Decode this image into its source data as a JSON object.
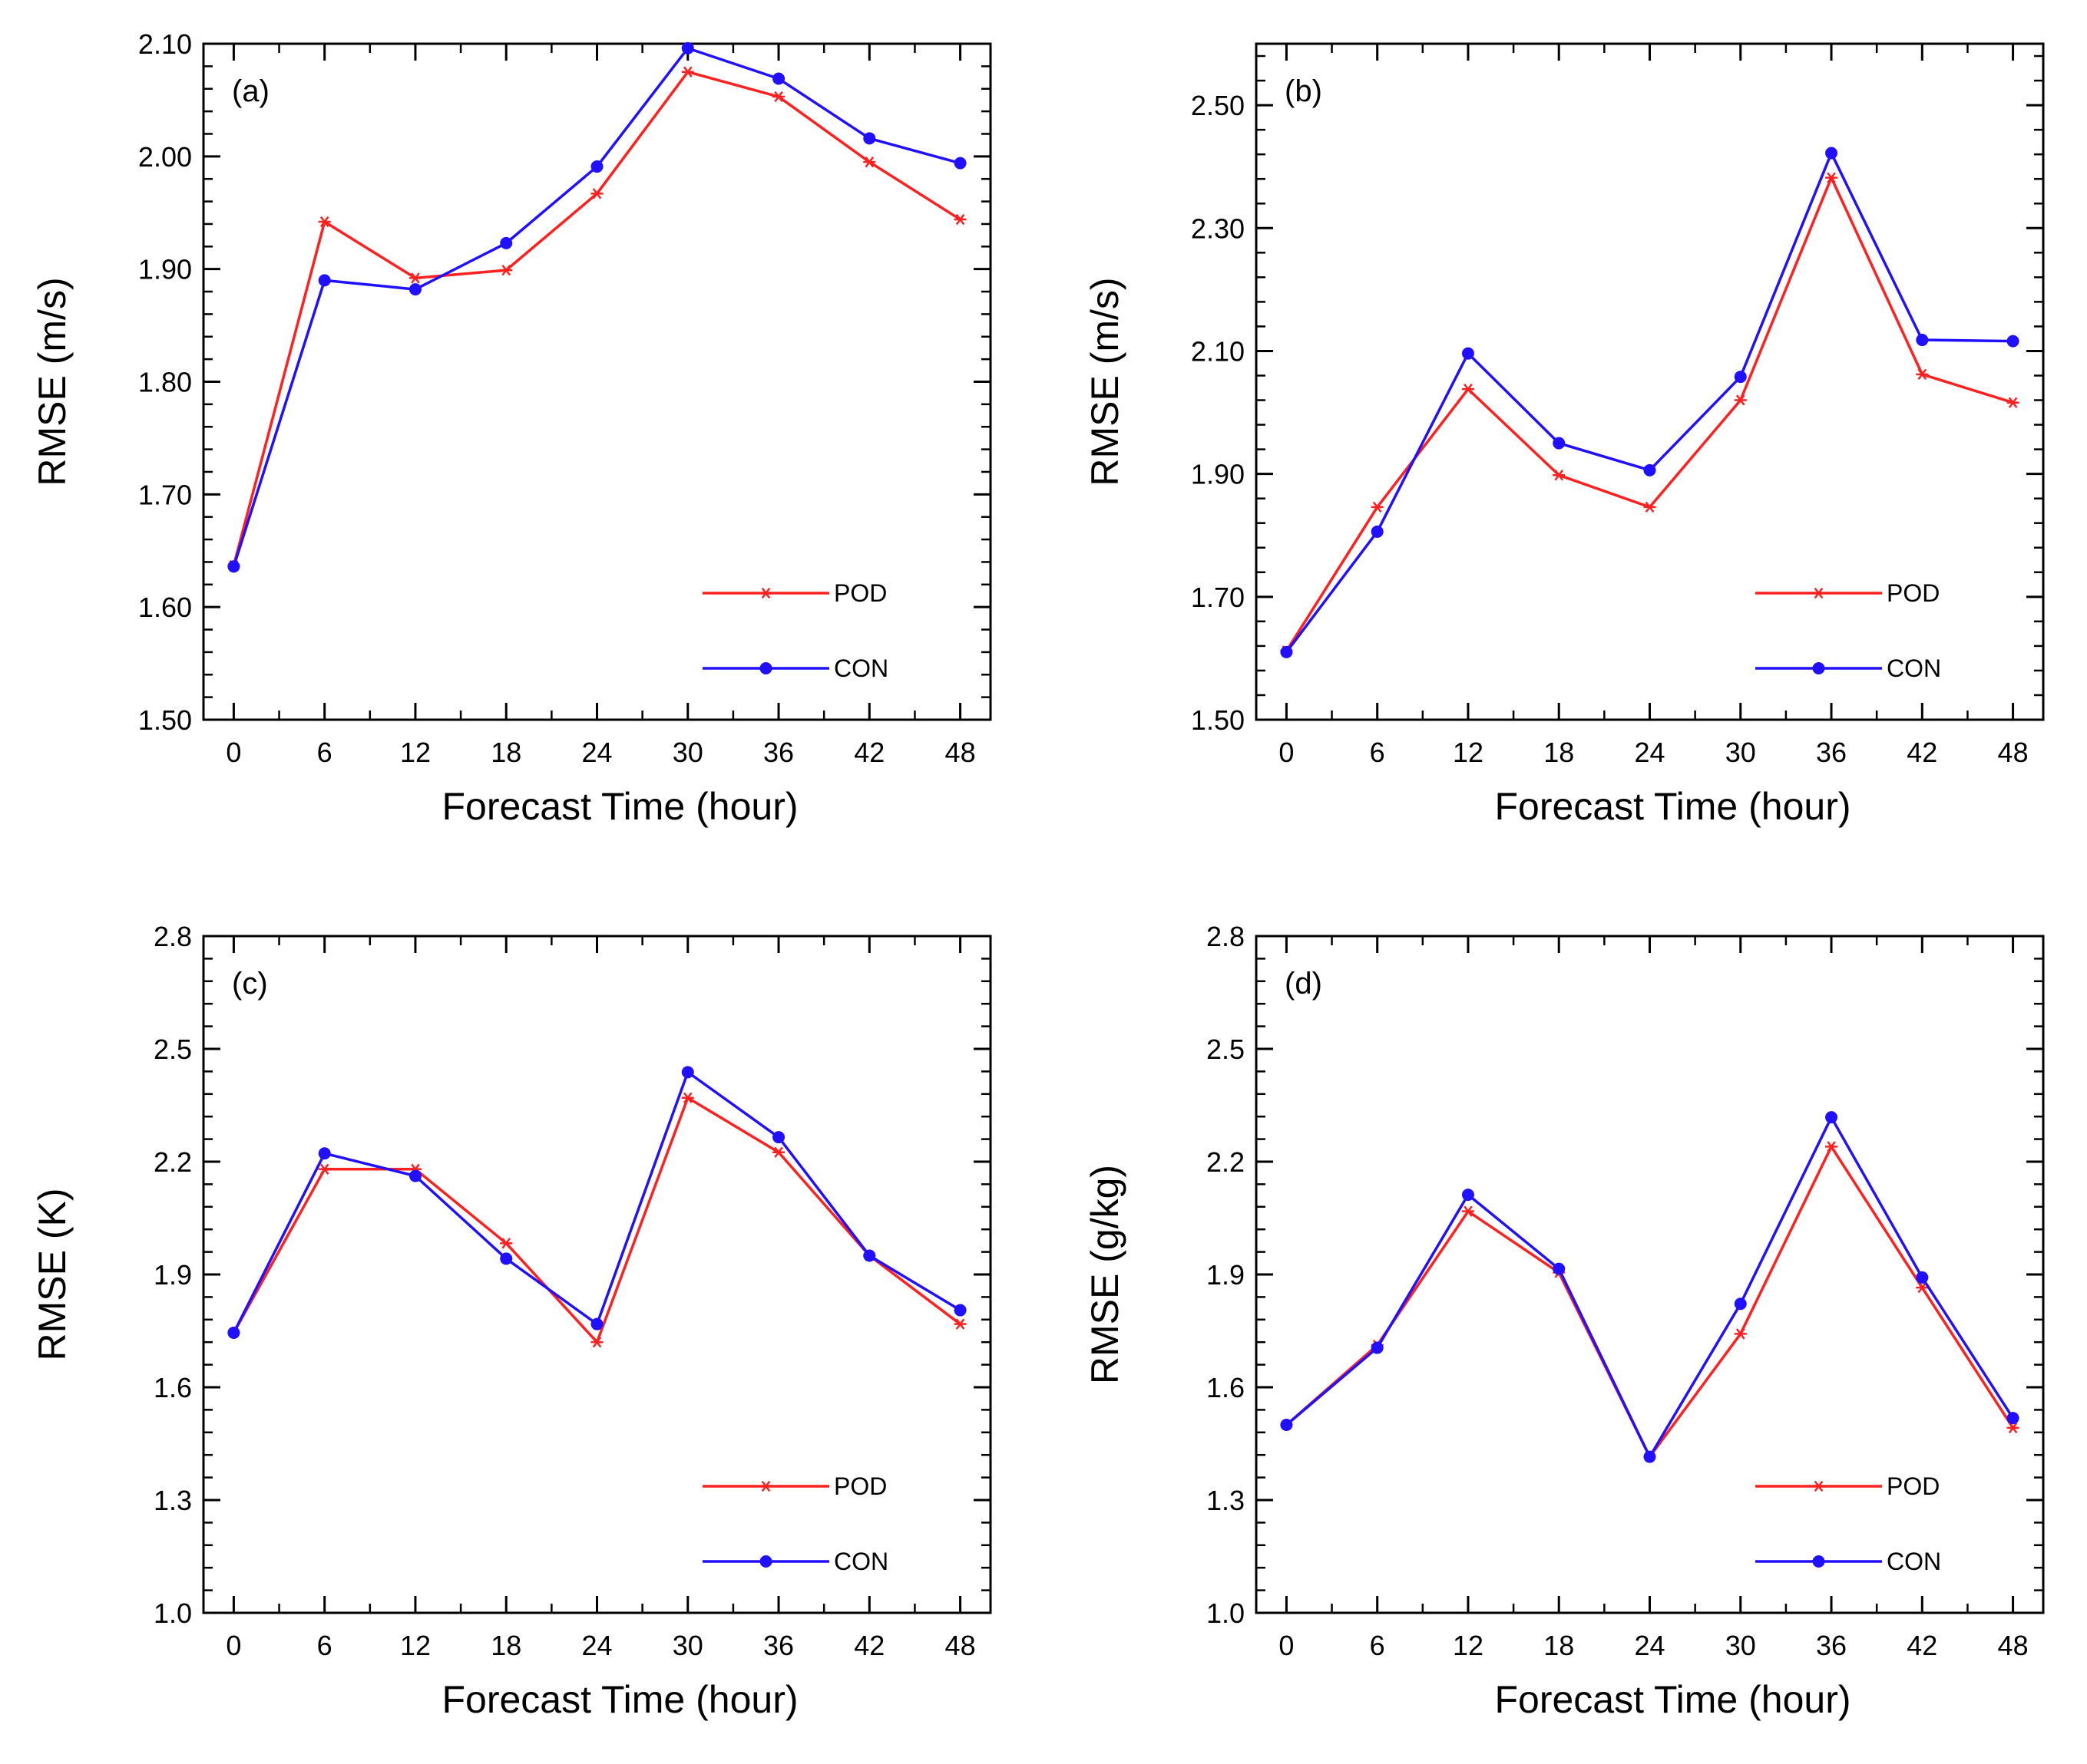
{
  "chart_data": [
    {
      "type": "line",
      "panel_label": "(a)",
      "xlabel": "Forecast Time (hour)",
      "ylabel": "RMSE (m/s)",
      "x": [
        0,
        6,
        12,
        18,
        24,
        30,
        36,
        42,
        48
      ],
      "x_tick_labels": [
        "0",
        "6",
        "12",
        "18",
        "24",
        "30",
        "36",
        "42",
        "48"
      ],
      "ylim": [
        1.5,
        2.1
      ],
      "y_ticks": [
        1.5,
        1.6,
        1.7,
        1.8,
        1.9,
        2.0,
        2.1
      ],
      "y_tick_labels": [
        "1.50",
        "1.60",
        "1.70",
        "1.80",
        "1.90",
        "2.00",
        "2.10"
      ],
      "legend_position": "bottom-right",
      "series": [
        {
          "name": "POD",
          "color": "#ff2020",
          "marker": "asterisk",
          "values": [
            1.637,
            1.942,
            1.892,
            1.899,
            1.967,
            2.075,
            2.053,
            1.995,
            1.944
          ]
        },
        {
          "name": "CON",
          "color": "#2010ff",
          "marker": "dot",
          "values": [
            1.636,
            1.89,
            1.882,
            1.923,
            1.991,
            2.096,
            2.069,
            2.016,
            1.994
          ]
        }
      ]
    },
    {
      "type": "line",
      "panel_label": "(b)",
      "xlabel": "Forecast Time (hour)",
      "ylabel": "RMSE (m/s)",
      "x": [
        0,
        6,
        12,
        18,
        24,
        30,
        36,
        42,
        48
      ],
      "x_tick_labels": [
        "0",
        "6",
        "12",
        "18",
        "24",
        "30",
        "36",
        "42",
        "48"
      ],
      "ylim": [
        1.5,
        2.6
      ],
      "y_ticks": [
        1.5,
        1.7,
        1.9,
        2.1,
        2.3,
        2.5
      ],
      "y_tick_labels": [
        "1.50",
        "1.70",
        "1.90",
        "2.10",
        "2.30",
        "2.50"
      ],
      "legend_position": "bottom-right",
      "series": [
        {
          "name": "POD",
          "color": "#ff2020",
          "marker": "asterisk",
          "values": [
            1.612,
            1.846,
            2.038,
            1.898,
            1.846,
            2.02,
            2.382,
            2.062,
            2.016
          ]
        },
        {
          "name": "CON",
          "color": "#2010ff",
          "marker": "dot",
          "values": [
            1.61,
            1.806,
            2.096,
            1.95,
            1.906,
            2.058,
            2.422,
            2.118,
            2.116
          ]
        }
      ]
    },
    {
      "type": "line",
      "panel_label": "(c)",
      "xlabel": "Forecast Time (hour)",
      "ylabel": "RMSE (K)",
      "x": [
        0,
        6,
        12,
        18,
        24,
        30,
        36,
        42,
        48
      ],
      "x_tick_labels": [
        "0",
        "6",
        "12",
        "18",
        "24",
        "30",
        "36",
        "42",
        "48"
      ],
      "ylim": [
        1.0,
        2.8
      ],
      "y_ticks": [
        1.0,
        1.3,
        1.6,
        1.9,
        2.2,
        2.5,
        2.8
      ],
      "y_tick_labels": [
        "1.0",
        "1.3",
        "1.6",
        "1.9",
        "2.2",
        "2.5",
        "2.8"
      ],
      "legend_position": "bottom-right",
      "series": [
        {
          "name": "POD",
          "color": "#ff2020",
          "marker": "asterisk",
          "values": [
            1.745,
            2.18,
            2.18,
            1.983,
            1.72,
            2.37,
            2.225,
            1.95,
            1.768
          ]
        },
        {
          "name": "CON",
          "color": "#2010ff",
          "marker": "dot",
          "values": [
            1.745,
            2.222,
            2.162,
            1.942,
            1.768,
            2.438,
            2.265,
            1.95,
            1.805
          ]
        }
      ]
    },
    {
      "type": "line",
      "panel_label": "(d)",
      "xlabel": "Forecast Time (hour)",
      "ylabel": "RMSE (g/kg)",
      "x": [
        0,
        6,
        12,
        18,
        24,
        30,
        36,
        42,
        48
      ],
      "x_tick_labels": [
        "0",
        "6",
        "12",
        "18",
        "24",
        "30",
        "36",
        "42",
        "48"
      ],
      "ylim": [
        1.0,
        2.8
      ],
      "y_ticks": [
        1.0,
        1.3,
        1.6,
        1.9,
        2.2,
        2.5,
        2.8
      ],
      "y_tick_labels": [
        "1.0",
        "1.3",
        "1.6",
        "1.9",
        "2.2",
        "2.5",
        "2.8"
      ],
      "legend_position": "bottom-right",
      "series": [
        {
          "name": "POD",
          "color": "#ff2020",
          "marker": "asterisk",
          "values": [
            1.5,
            1.712,
            2.068,
            1.905,
            1.415,
            1.742,
            2.24,
            1.865,
            1.492
          ]
        },
        {
          "name": "CON",
          "color": "#2010ff",
          "marker": "dot",
          "values": [
            1.5,
            1.705,
            2.112,
            1.915,
            1.415,
            1.822,
            2.318,
            1.892,
            1.518
          ]
        }
      ]
    }
  ]
}
